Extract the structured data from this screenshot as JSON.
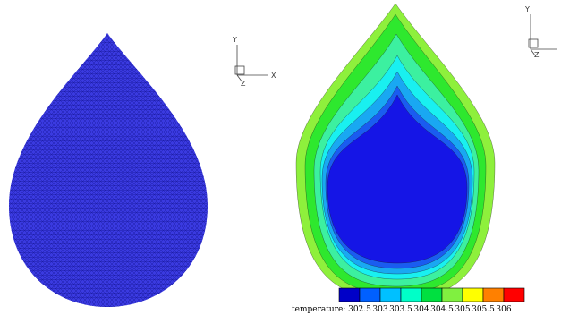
{
  "left_panel": {
    "mesh_color": "#3a3ae0",
    "mesh_edge_color": "#1e1ea8",
    "axes": {
      "y": "Y",
      "x": "X",
      "z": "Z"
    }
  },
  "right_panel": {
    "axes": {
      "y": "Y",
      "z": "Z"
    },
    "contour_colors": [
      "#1515e6",
      "#1a5cf0",
      "#19a8f2",
      "#19f0f0",
      "#3cf0a0",
      "#2ee82e",
      "#8ef03c"
    ]
  },
  "legend": {
    "title": "temperature:",
    "ticks": [
      "302.5",
      "303",
      "303.5",
      "304",
      "304.5",
      "305",
      "305.5",
      "306"
    ],
    "colors": [
      "#0000c8",
      "#0060ff",
      "#00c0ff",
      "#00ffc8",
      "#00e040",
      "#80f040",
      "#ffff00",
      "#ff8000",
      "#ff0000"
    ]
  }
}
